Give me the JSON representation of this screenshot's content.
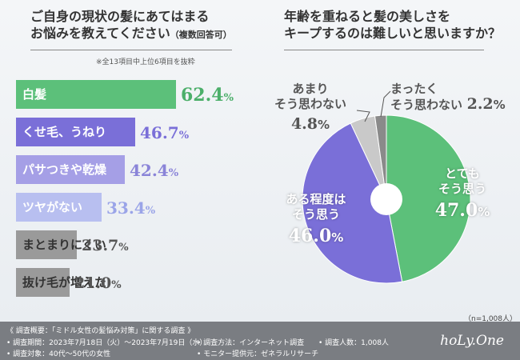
{
  "left_title": {
    "line1": "ご自身の現状の髪にあてはまる",
    "line2": "お悩みを教えてください",
    "suffix": "（複数回答可）"
  },
  "left_note": "※全13項目中上位6項目を抜粋",
  "right_title": {
    "line1": "年齢を重ねると髪の美しさを",
    "line2": "キープするのは難しいと思いますか？"
  },
  "sample_note": "（n=1,008人）",
  "brand": "hoLy.One",
  "footer": {
    "heading": "《 調査概要：「ミドル女性の髪悩み対策」に関する調査 》",
    "period": "• 調査期間：2023年7月18日（火）〜2023年7月19日（水）",
    "method": "• 調査方法：インターネット調査",
    "count": "• 調査人数：1,008人",
    "target": "• 調査対象：40代〜50代の女性",
    "provider": "• モニター提供元：ゼネラルリサーチ"
  },
  "chart_data": [
    {
      "type": "bar",
      "orientation": "horizontal",
      "title": "ご自身の現状の髪にあてはまるお悩みを教えてください（複数回答可）",
      "categories": [
        "白髪",
        "くせ毛、うねり",
        "パサつきや乾燥",
        "ツヤがない",
        "まとまりにくい",
        "抜け毛が増えた"
      ],
      "values": [
        62.4,
        46.7,
        42.4,
        33.4,
        23.7,
        21.0
      ],
      "unit": "%",
      "colors": [
        "#5cc07a",
        "#7a6fd8",
        "#a59fe6",
        "#b8bff0",
        "#9a9a9a",
        "#9a9a9a"
      ],
      "label_colors": [
        "#ffffff",
        "#ffffff",
        "#ffffff",
        "#ffffff",
        "#333333",
        "#333333"
      ],
      "value_colors": [
        "#4caf6a",
        "#7a6fd8",
        "#8a84d8",
        "#9aa4e8",
        "#555555",
        "#555555"
      ],
      "xlim": [
        0,
        100
      ]
    },
    {
      "type": "pie",
      "title": "年齢を重ねると髪の美しさをキープするのは難しいと思いますか？",
      "categories": [
        "とてもそう思う",
        "ある程度はそう思う",
        "あまりそう思わない",
        "まったくそう思わない"
      ],
      "values": [
        47.0,
        46.0,
        4.8,
        2.2
      ],
      "unit": "%",
      "colors": [
        "#5cc07a",
        "#7a6fd8",
        "#c9c9c9",
        "#8a8a8a"
      ],
      "labels": [
        {
          "line1": "とても",
          "line2": "そう思う",
          "value": "47.0",
          "pct": "%"
        },
        {
          "line1": "ある程度は",
          "line2": "そう思う",
          "value": "46.0",
          "pct": "%"
        },
        {
          "line1": "あまり",
          "line2": "そう思わない",
          "value": "4.8",
          "pct": "%"
        },
        {
          "line1": "まったく",
          "line2": "そう思わない",
          "value": "2.2",
          "pct": "%"
        }
      ]
    }
  ]
}
